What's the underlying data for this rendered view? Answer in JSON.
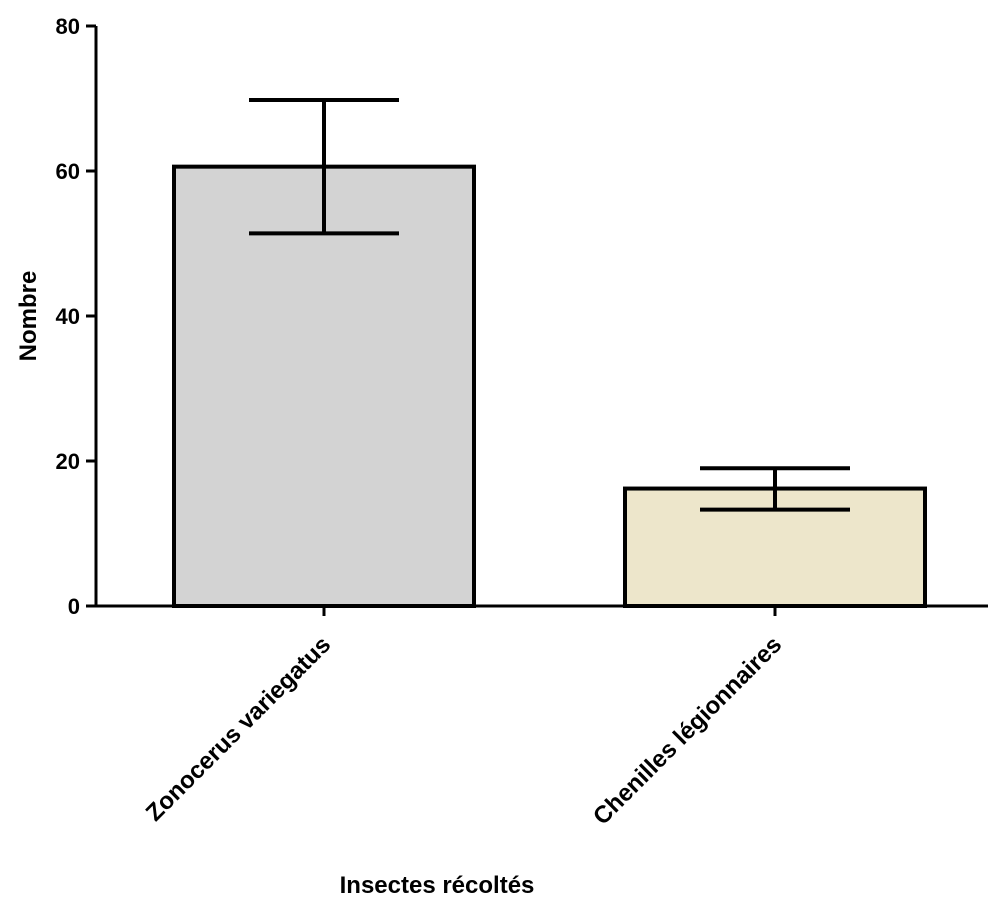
{
  "chart_data": {
    "type": "bar",
    "title": "",
    "xlabel": "Insectes récoltés",
    "ylabel": "Nombre",
    "ylim": [
      0,
      80
    ],
    "yticks": [
      0,
      20,
      40,
      60,
      80
    ],
    "grid": false,
    "categories": [
      "Zonocerus variegatus",
      "Chenilles légionnaires"
    ],
    "values": [
      60.6,
      16.2
    ],
    "error_low": [
      51.4,
      13.3
    ],
    "error_high": [
      69.8,
      19.0
    ],
    "bar_colors": [
      "#d3d3d3",
      "#ede6cb"
    ],
    "stroke_color": "#000000"
  }
}
